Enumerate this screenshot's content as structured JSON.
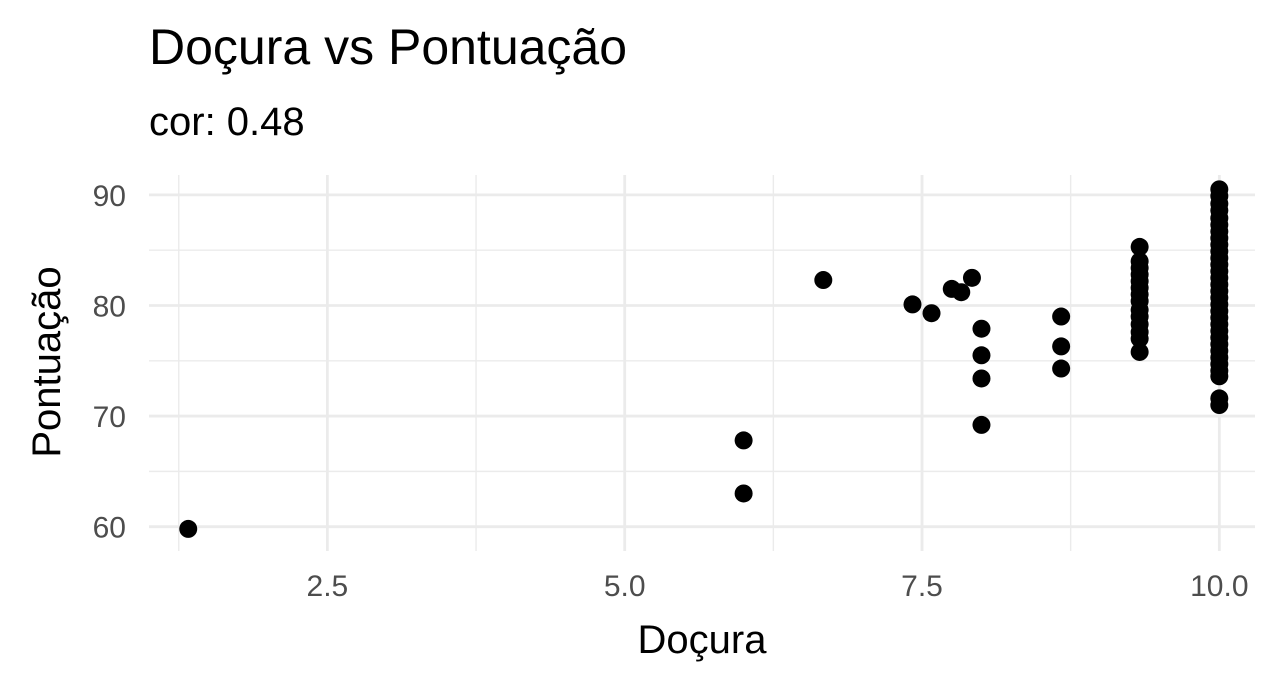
{
  "chart_data": {
    "type": "scatter",
    "title": "Doçura vs Pontuação",
    "subtitle": "cor: 0.48",
    "xlabel": "Doçura",
    "ylabel": "Pontuação",
    "xlim": [
      1.0,
      10.3
    ],
    "ylim": [
      57.8,
      91.8
    ],
    "x_ticks": [
      2.5,
      5.0,
      7.5,
      10.0
    ],
    "x_tick_labels": [
      "2.5",
      "5.0",
      "7.5",
      "10.0"
    ],
    "x_minor_ticks": [
      1.25,
      3.75,
      6.25,
      8.75
    ],
    "y_ticks": [
      60,
      70,
      80,
      90
    ],
    "y_tick_labels": [
      "60",
      "70",
      "80",
      "90"
    ],
    "y_minor_ticks": [
      65,
      75,
      85
    ],
    "grid": true,
    "point_color": "#000000",
    "points": [
      {
        "x": 1.33,
        "y": 59.8
      },
      {
        "x": 6.0,
        "y": 67.8
      },
      {
        "x": 6.0,
        "y": 63.0
      },
      {
        "x": 6.67,
        "y": 82.3
      },
      {
        "x": 7.42,
        "y": 80.1
      },
      {
        "x": 7.58,
        "y": 79.3
      },
      {
        "x": 7.75,
        "y": 81.5
      },
      {
        "x": 7.83,
        "y": 81.2
      },
      {
        "x": 7.92,
        "y": 82.5
      },
      {
        "x": 8.0,
        "y": 77.9
      },
      {
        "x": 8.0,
        "y": 75.5
      },
      {
        "x": 8.0,
        "y": 73.4
      },
      {
        "x": 8.0,
        "y": 69.2
      },
      {
        "x": 8.67,
        "y": 79.0
      },
      {
        "x": 8.67,
        "y": 76.3
      },
      {
        "x": 8.67,
        "y": 74.3
      },
      {
        "x": 9.33,
        "y": 85.3
      },
      {
        "x": 9.33,
        "y": 84.0
      },
      {
        "x": 9.33,
        "y": 83.4
      },
      {
        "x": 9.33,
        "y": 82.8
      },
      {
        "x": 9.33,
        "y": 82.2
      },
      {
        "x": 9.33,
        "y": 81.6
      },
      {
        "x": 9.33,
        "y": 81.0
      },
      {
        "x": 9.33,
        "y": 80.4
      },
      {
        "x": 9.33,
        "y": 79.6
      },
      {
        "x": 9.33,
        "y": 79.0
      },
      {
        "x": 9.33,
        "y": 78.3
      },
      {
        "x": 9.33,
        "y": 77.6
      },
      {
        "x": 9.33,
        "y": 77.0
      },
      {
        "x": 9.33,
        "y": 75.8
      },
      {
        "x": 10.0,
        "y": 90.5
      },
      {
        "x": 10.0,
        "y": 89.9
      },
      {
        "x": 10.0,
        "y": 89.2
      },
      {
        "x": 10.0,
        "y": 88.6
      },
      {
        "x": 10.0,
        "y": 87.9
      },
      {
        "x": 10.0,
        "y": 87.3
      },
      {
        "x": 10.0,
        "y": 86.7
      },
      {
        "x": 10.0,
        "y": 86.1
      },
      {
        "x": 10.0,
        "y": 85.5
      },
      {
        "x": 10.0,
        "y": 84.9
      },
      {
        "x": 10.0,
        "y": 84.3
      },
      {
        "x": 10.0,
        "y": 83.7
      },
      {
        "x": 10.0,
        "y": 83.1
      },
      {
        "x": 10.0,
        "y": 82.5
      },
      {
        "x": 10.0,
        "y": 81.9
      },
      {
        "x": 10.0,
        "y": 81.3
      },
      {
        "x": 10.0,
        "y": 80.7
      },
      {
        "x": 10.0,
        "y": 80.1
      },
      {
        "x": 10.0,
        "y": 79.5
      },
      {
        "x": 10.0,
        "y": 78.9
      },
      {
        "x": 10.0,
        "y": 78.3
      },
      {
        "x": 10.0,
        "y": 77.7
      },
      {
        "x": 10.0,
        "y": 77.1
      },
      {
        "x": 10.0,
        "y": 76.5
      },
      {
        "x": 10.0,
        "y": 75.9
      },
      {
        "x": 10.0,
        "y": 75.3
      },
      {
        "x": 10.0,
        "y": 74.7
      },
      {
        "x": 10.0,
        "y": 74.1
      },
      {
        "x": 10.0,
        "y": 73.6
      },
      {
        "x": 10.0,
        "y": 71.6
      },
      {
        "x": 10.0,
        "y": 71.0
      }
    ]
  }
}
